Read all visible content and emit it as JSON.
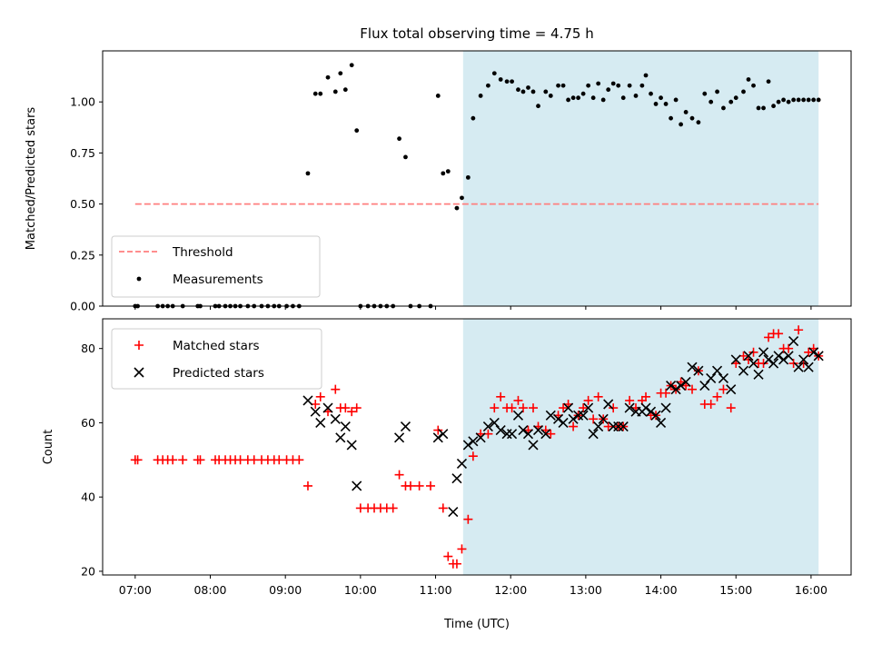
{
  "chart_data": [
    {
      "type": "scatter",
      "title": "Flux total observing time = 4.75 h",
      "ylabel": "Matched/Predicted stars",
      "xlabel": "",
      "xlim": [
        "06:34",
        "16:32"
      ],
      "ylim": [
        0,
        1.25
      ],
      "yticks": [
        "0.00",
        "0.25",
        "0.50",
        "0.75",
        "1.00"
      ],
      "highlight_span": [
        "11:22",
        "16:06"
      ],
      "highlight_color": "#add8e6",
      "legend_position": "lower-left",
      "grid": false,
      "series": [
        {
          "name": "Threshold",
          "style": "dashed-line",
          "color": "#ff7f7f",
          "x": [
            "07:00",
            "16:06"
          ],
          "y": [
            0.5,
            0.5
          ]
        },
        {
          "name": "Measurements",
          "style": "dot",
          "color": "#000000",
          "x": [
            "07:00",
            "07:02",
            "07:18",
            "07:22",
            "07:26",
            "07:30",
            "07:38",
            "07:50",
            "07:52",
            "08:04",
            "08:07",
            "08:12",
            "08:16",
            "08:20",
            "08:24",
            "08:30",
            "08:35",
            "08:41",
            "08:46",
            "08:51",
            "08:55",
            "09:01",
            "09:06",
            "09:11",
            "09:18",
            "09:24",
            "09:28",
            "09:34",
            "09:40",
            "09:44",
            "09:48",
            "09:53",
            "09:57",
            "10:00",
            "10:06",
            "10:11",
            "10:16",
            "10:21",
            "10:26",
            "10:31",
            "10:36",
            "10:40",
            "10:47",
            "10:56",
            "11:02",
            "11:06",
            "11:10",
            "11:17",
            "11:21",
            "11:26",
            "11:30",
            "11:36",
            "11:42",
            "11:47",
            "11:52",
            "11:57",
            "12:01",
            "12:06",
            "12:10",
            "12:14",
            "12:18",
            "12:22",
            "12:28",
            "12:32",
            "12:38",
            "12:42",
            "12:46",
            "12:50",
            "12:54",
            "12:58",
            "13:02",
            "13:06",
            "13:10",
            "13:14",
            "13:18",
            "13:22",
            "13:26",
            "13:30",
            "13:35",
            "13:40",
            "13:45",
            "13:48",
            "13:52",
            "13:56",
            "14:00",
            "14:04",
            "14:08",
            "14:12",
            "14:16",
            "14:20",
            "14:25",
            "14:30",
            "14:35",
            "14:40",
            "14:45",
            "14:50",
            "14:56",
            "15:00",
            "15:06",
            "15:10",
            "15:14",
            "15:18",
            "15:22",
            "15:26",
            "15:30",
            "15:34",
            "15:38",
            "15:42",
            "15:46",
            "15:50",
            "15:54",
            "15:58",
            "16:02",
            "16:06"
          ],
          "y": [
            0,
            0,
            0,
            0,
            0,
            0,
            0,
            0,
            0,
            0,
            0,
            0,
            0,
            0,
            0,
            0,
            0,
            0,
            0,
            0,
            0,
            0,
            0,
            0,
            0.65,
            1.04,
            1.04,
            1.12,
            1.05,
            1.14,
            1.06,
            1.18,
            0.86,
            0,
            0,
            0,
            0,
            0,
            0,
            0.82,
            0.73,
            0,
            0,
            0,
            1.03,
            0.65,
            0.66,
            0.48,
            0.53,
            0.63,
            0.92,
            1.03,
            1.08,
            1.14,
            1.11,
            1.1,
            1.1,
            1.06,
            1.05,
            1.07,
            1.05,
            0.98,
            1.05,
            1.03,
            1.08,
            1.08,
            1.01,
            1.02,
            1.02,
            1.04,
            1.08,
            1.02,
            1.09,
            1.01,
            1.06,
            1.09,
            1.08,
            1.02,
            1.08,
            1.03,
            1.08,
            1.13,
            1.04,
            0.99,
            1.02,
            0.99,
            0.92,
            1.01,
            0.89,
            0.95,
            0.92,
            0.9,
            1.04,
            1.0,
            1.05,
            0.97,
            1.0,
            1.02,
            1.05,
            1.11,
            1.08,
            0.97,
            0.97,
            1.1,
            0.98,
            1.0,
            1.01,
            1.0,
            1.01,
            1.01,
            1.01,
            1.01,
            1.01,
            1.01
          ]
        }
      ]
    },
    {
      "type": "scatter",
      "title": "",
      "ylabel": "Count",
      "xlabel": "Time (UTC)",
      "xlim": [
        "06:34",
        "16:32"
      ],
      "ylim": [
        19,
        88
      ],
      "yticks": [
        "20",
        "40",
        "60",
        "80"
      ],
      "xticks": [
        "07:00",
        "08:00",
        "09:00",
        "10:00",
        "11:00",
        "12:00",
        "13:00",
        "14:00",
        "15:00",
        "16:00"
      ],
      "highlight_span": [
        "11:22",
        "16:06"
      ],
      "highlight_color": "#add8e6",
      "legend_position": "upper-left",
      "grid": false,
      "series": [
        {
          "name": "Matched stars",
          "style": "plus",
          "color": "#ff0000",
          "x": [
            "07:00",
            "07:02",
            "07:18",
            "07:22",
            "07:26",
            "07:30",
            "07:38",
            "07:50",
            "07:52",
            "08:04",
            "08:07",
            "08:12",
            "08:16",
            "08:20",
            "08:24",
            "08:30",
            "08:35",
            "08:41",
            "08:46",
            "08:51",
            "08:55",
            "09:01",
            "09:06",
            "09:11",
            "09:18",
            "09:24",
            "09:28",
            "09:34",
            "09:40",
            "09:44",
            "09:48",
            "09:53",
            "09:57",
            "10:00",
            "10:06",
            "10:11",
            "10:16",
            "10:21",
            "10:26",
            "10:31",
            "10:36",
            "10:40",
            "10:47",
            "10:56",
            "11:02",
            "11:06",
            "11:10",
            "11:14",
            "11:17",
            "11:21",
            "11:26",
            "11:30",
            "11:36",
            "11:42",
            "11:47",
            "11:52",
            "11:57",
            "12:01",
            "12:06",
            "12:10",
            "12:14",
            "12:18",
            "12:22",
            "12:28",
            "12:32",
            "12:38",
            "12:42",
            "12:46",
            "12:50",
            "12:54",
            "12:58",
            "13:02",
            "13:06",
            "13:10",
            "13:14",
            "13:18",
            "13:22",
            "13:26",
            "13:30",
            "13:35",
            "13:40",
            "13:45",
            "13:48",
            "13:52",
            "13:56",
            "14:00",
            "14:04",
            "14:08",
            "14:12",
            "14:16",
            "14:20",
            "14:25",
            "14:30",
            "14:35",
            "14:40",
            "14:45",
            "14:50",
            "14:56",
            "15:00",
            "15:06",
            "15:10",
            "15:14",
            "15:18",
            "15:22",
            "15:26",
            "15:30",
            "15:34",
            "15:38",
            "15:42",
            "15:46",
            "15:50",
            "15:54",
            "15:58",
            "16:02",
            "16:06"
          ],
          "y": [
            50,
            50,
            50,
            50,
            50,
            50,
            50,
            50,
            50,
            50,
            50,
            50,
            50,
            50,
            50,
            50,
            50,
            50,
            50,
            50,
            50,
            50,
            50,
            50,
            43,
            65,
            67,
            63,
            69,
            64,
            64,
            63,
            64,
            37,
            37,
            37,
            37,
            37,
            37,
            46,
            43,
            43,
            43,
            43,
            58,
            37,
            24,
            22,
            22,
            26,
            34,
            51,
            57,
            57,
            64,
            67,
            64,
            64,
            66,
            64,
            58,
            64,
            59,
            58,
            57,
            62,
            64,
            65,
            59,
            62,
            64,
            66,
            61,
            67,
            61,
            59,
            64,
            59,
            59,
            66,
            64,
            66,
            67,
            62,
            62,
            68,
            68,
            70,
            69,
            71,
            70,
            69,
            74,
            65,
            65,
            67,
            69,
            64,
            76,
            78,
            77,
            79,
            76,
            76,
            83,
            84,
            84,
            80,
            80,
            76,
            85,
            76,
            79,
            80,
            78
          ]
        },
        {
          "name": "Predicted stars",
          "style": "cross",
          "color": "#000000",
          "x": [
            "09:18",
            "09:24",
            "09:28",
            "09:34",
            "09:40",
            "09:44",
            "09:48",
            "09:53",
            "09:57",
            "10:31",
            "10:36",
            "11:02",
            "11:06",
            "11:14",
            "11:17",
            "11:21",
            "11:26",
            "11:30",
            "11:36",
            "11:42",
            "11:47",
            "11:52",
            "11:57",
            "12:01",
            "12:06",
            "12:10",
            "12:14",
            "12:18",
            "12:22",
            "12:28",
            "12:32",
            "12:38",
            "12:42",
            "12:46",
            "12:50",
            "12:54",
            "12:58",
            "13:02",
            "13:06",
            "13:10",
            "13:14",
            "13:18",
            "13:22",
            "13:26",
            "13:30",
            "13:35",
            "13:40",
            "13:45",
            "13:48",
            "13:52",
            "13:56",
            "14:00",
            "14:04",
            "14:08",
            "14:12",
            "14:16",
            "14:20",
            "14:25",
            "14:30",
            "14:35",
            "14:40",
            "14:45",
            "14:50",
            "14:56",
            "15:00",
            "15:06",
            "15:10",
            "15:14",
            "15:18",
            "15:22",
            "15:26",
            "15:30",
            "15:34",
            "15:38",
            "15:42",
            "15:46",
            "15:50",
            "15:54",
            "15:58",
            "16:02",
            "16:06"
          ],
          "y": [
            66,
            63,
            60,
            64,
            61,
            56,
            59,
            54,
            43,
            56,
            59,
            56,
            57,
            36,
            45,
            49,
            54,
            55,
            56,
            59,
            60,
            58,
            57,
            57,
            62,
            58,
            57,
            54,
            58,
            57,
            62,
            61,
            60,
            64,
            61,
            62,
            62,
            64,
            57,
            59,
            61,
            65,
            59,
            59,
            59,
            64,
            63,
            63,
            64,
            63,
            62,
            60,
            64,
            70,
            69,
            70,
            71,
            75,
            74,
            70,
            72,
            74,
            72,
            69,
            77,
            74,
            78,
            76,
            73,
            79,
            77,
            76,
            78,
            77,
            78,
            82,
            75,
            77,
            75,
            79,
            78
          ]
        }
      ]
    }
  ]
}
